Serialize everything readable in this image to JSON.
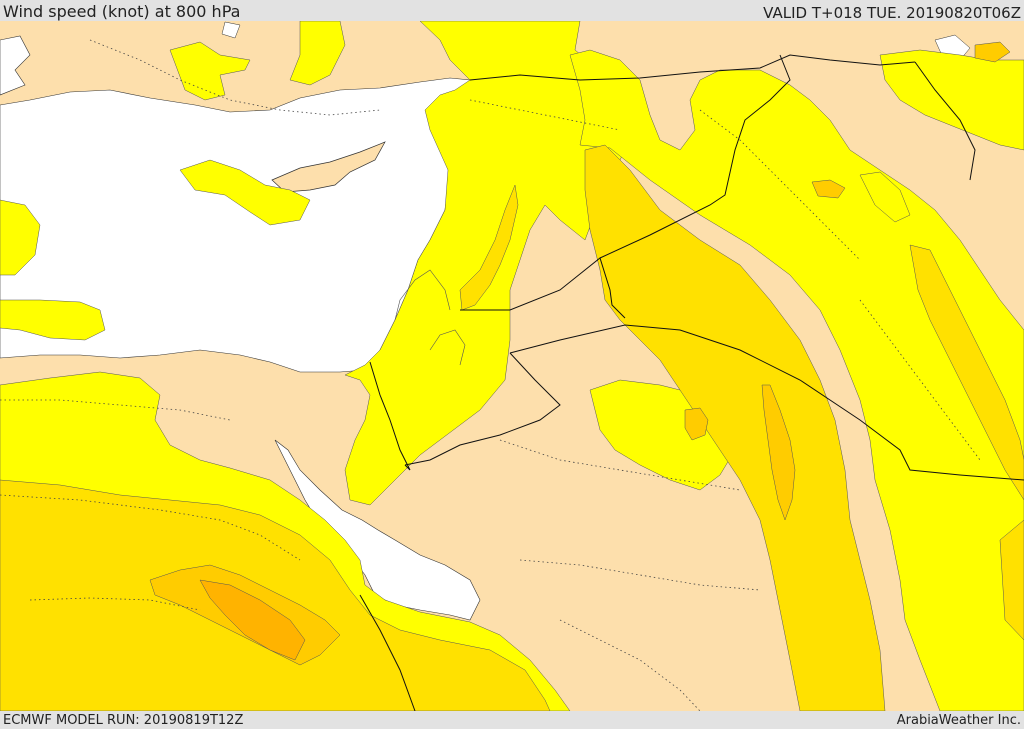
{
  "header": {
    "title": "Wind speed (knot) at 800 hPa",
    "valid": "VALID T+018 TUE. 20190820T06Z"
  },
  "footer": {
    "model_run": "ECMWF MODEL RUN: 20190819T12Z",
    "provider": "ArabiaWeather Inc."
  },
  "map": {
    "colors": {
      "land_calm": "#fddfac",
      "sea": "#ffffff",
      "band_1": "#ffff00",
      "band_2": "#ffe100",
      "band_3": "#ffcc00",
      "band_4": "#ffb300",
      "contour": "#555555",
      "border": "#111111"
    }
  }
}
